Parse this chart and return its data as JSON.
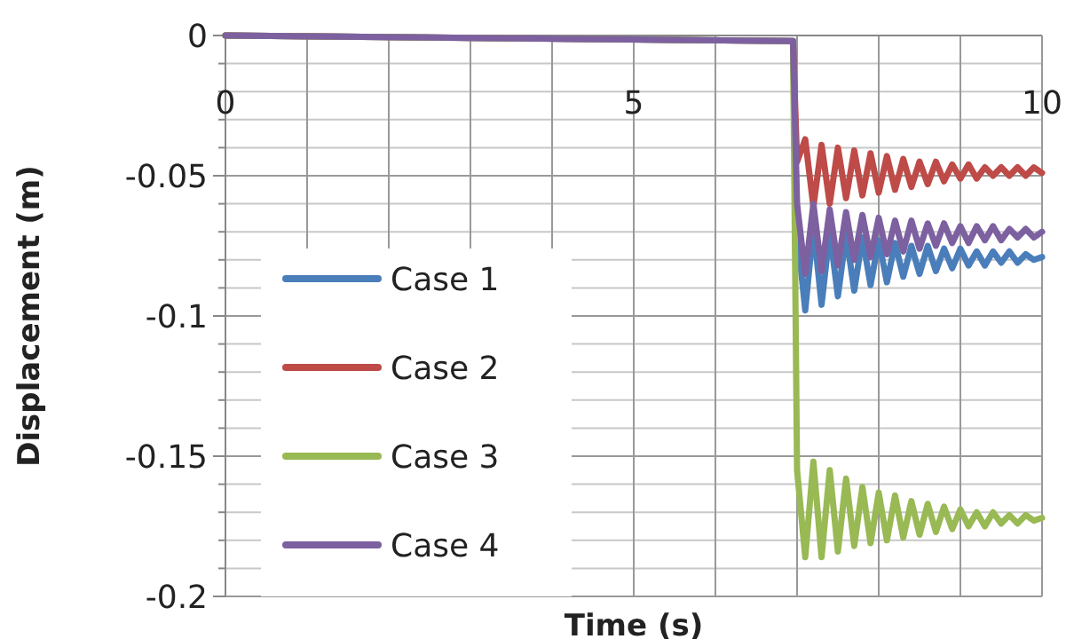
{
  "chart_data": {
    "type": "line",
    "xlabel": "Time (s)",
    "ylabel": "Displacement (m)",
    "x": [
      0,
      6.95,
      7.0,
      7.1,
      7.2,
      7.3,
      7.4,
      7.5,
      7.6,
      7.7,
      7.8,
      7.9,
      8.0,
      8.1,
      8.2,
      8.3,
      8.4,
      8.5,
      8.6,
      8.7,
      8.8,
      8.9,
      9.0,
      9.1,
      9.2,
      9.3,
      9.4,
      9.5,
      9.6,
      9.7,
      9.8,
      9.9,
      10.0
    ],
    "xlim": [
      0,
      10
    ],
    "xticks": [
      0,
      {
        "value": 1,
        "label": null
      },
      {
        "value": 2,
        "label": null
      },
      {
        "value": 3,
        "label": null
      },
      {
        "value": 4,
        "label": null
      },
      5,
      {
        "value": 6,
        "label": null
      },
      {
        "value": 7,
        "label": null
      },
      {
        "value": 8,
        "label": null
      },
      {
        "value": 9,
        "label": null
      },
      10
    ],
    "ylim": [
      -0.2,
      0
    ],
    "yticks": [
      0,
      {
        "value": -0.01,
        "label": null
      },
      {
        "value": -0.02,
        "label": null
      },
      {
        "value": -0.03,
        "label": null
      },
      {
        "value": -0.04,
        "label": null
      },
      -0.05,
      {
        "value": -0.06,
        "label": null
      },
      {
        "value": -0.07,
        "label": null
      },
      {
        "value": -0.08,
        "label": null
      },
      {
        "value": -0.09,
        "label": null
      },
      -0.1,
      {
        "value": -0.11,
        "label": null
      },
      {
        "value": -0.12,
        "label": null
      },
      {
        "value": -0.13,
        "label": null
      },
      {
        "value": -0.14,
        "label": null
      },
      -0.15,
      {
        "value": -0.16,
        "label": null
      },
      {
        "value": -0.17,
        "label": null
      },
      {
        "value": -0.18,
        "label": null
      },
      {
        "value": -0.19,
        "label": null
      },
      -0.2
    ],
    "grid": true,
    "legend": "bottom left",
    "line_style": "solid",
    "series": [
      {
        "name": "Case 1",
        "color": "#4a7ebb",
        "values": [
          0,
          -0.002,
          -0.07,
          -0.098,
          -0.068,
          -0.096,
          -0.07,
          -0.093,
          -0.071,
          -0.091,
          -0.072,
          -0.089,
          -0.073,
          -0.088,
          -0.074,
          -0.086,
          -0.075,
          -0.085,
          -0.075,
          -0.084,
          -0.076,
          -0.083,
          -0.076,
          -0.082,
          -0.077,
          -0.082,
          -0.077,
          -0.081,
          -0.077,
          -0.081,
          -0.078,
          -0.08,
          -0.079
        ]
      },
      {
        "name": "Case 2",
        "color": "#be4b48",
        "values": [
          0,
          -0.002,
          -0.045,
          -0.037,
          -0.061,
          -0.039,
          -0.06,
          -0.04,
          -0.058,
          -0.041,
          -0.057,
          -0.042,
          -0.056,
          -0.043,
          -0.055,
          -0.044,
          -0.054,
          -0.045,
          -0.053,
          -0.045,
          -0.052,
          -0.046,
          -0.051,
          -0.046,
          -0.051,
          -0.047,
          -0.05,
          -0.047,
          -0.05,
          -0.047,
          -0.05,
          -0.047,
          -0.049
        ]
      },
      {
        "name": "Case 3",
        "color": "#98b954",
        "values": [
          0,
          -0.002,
          -0.155,
          -0.186,
          -0.152,
          -0.186,
          -0.155,
          -0.184,
          -0.158,
          -0.182,
          -0.161,
          -0.181,
          -0.163,
          -0.18,
          -0.164,
          -0.179,
          -0.166,
          -0.178,
          -0.167,
          -0.177,
          -0.168,
          -0.176,
          -0.169,
          -0.175,
          -0.17,
          -0.175,
          -0.17,
          -0.174,
          -0.171,
          -0.174,
          -0.171,
          -0.173,
          -0.172
        ]
      },
      {
        "name": "Case 4",
        "color": "#7d60a0",
        "values": [
          0,
          -0.002,
          -0.06,
          -0.085,
          -0.06,
          -0.084,
          -0.062,
          -0.082,
          -0.063,
          -0.08,
          -0.064,
          -0.079,
          -0.065,
          -0.078,
          -0.066,
          -0.077,
          -0.066,
          -0.076,
          -0.067,
          -0.075,
          -0.067,
          -0.074,
          -0.068,
          -0.074,
          -0.068,
          -0.073,
          -0.068,
          -0.073,
          -0.069,
          -0.072,
          -0.069,
          -0.072,
          -0.07
        ]
      }
    ]
  }
}
